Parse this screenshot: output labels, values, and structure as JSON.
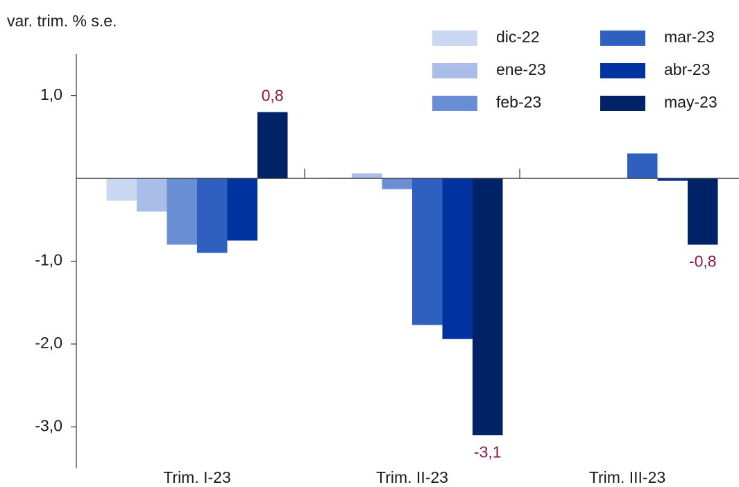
{
  "chart_data": {
    "type": "bar",
    "y_label": "var. trim. % s.e.",
    "categories": [
      "Trim. I-23",
      "Trim. II-23",
      "Trim. III-23"
    ],
    "series": [
      {
        "name": "dic-22",
        "color": "#c9d7f0",
        "values": [
          -0.27,
          0.01,
          null
        ]
      },
      {
        "name": "ene-23",
        "color": "#a9bde8",
        "values": [
          -0.4,
          0.06,
          null
        ]
      },
      {
        "name": "feb-23",
        "color": "#6a8ed4",
        "values": [
          -0.8,
          -0.13,
          null
        ]
      },
      {
        "name": "mar-23",
        "color": "#2f5fbf",
        "values": [
          -0.9,
          -1.77,
          0.3
        ]
      },
      {
        "name": "abr-23",
        "color": "#0033a0",
        "values": [
          -0.75,
          -1.94,
          -0.03
        ]
      },
      {
        "name": "may-23",
        "color": "#002266",
        "values": [
          0.8,
          -3.1,
          -0.8
        ],
        "value_labels": [
          "0,8",
          "-3,1",
          "-0,8"
        ]
      }
    ],
    "value_label_color": "#8b1a3f",
    "ylim": [
      -3.5,
      1.5
    ],
    "yticks": [
      {
        "value": 1,
        "label": "1,0"
      },
      {
        "value": -1,
        "label": "-1,0"
      },
      {
        "value": -2,
        "label": "-2,0"
      },
      {
        "value": -3,
        "label": "-3,0"
      }
    ]
  }
}
